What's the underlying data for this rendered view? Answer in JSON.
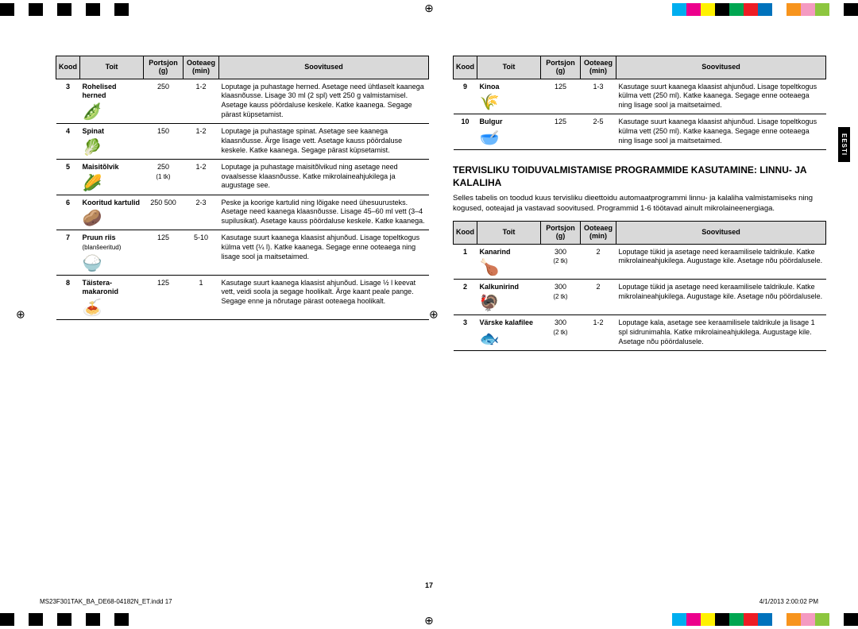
{
  "color_bar": {
    "left_segments": [
      "#000",
      "#fff",
      "#000",
      "#fff",
      "#000",
      "#fff",
      "#000",
      "#fff",
      "#000"
    ],
    "right_segments": [
      "#00aeef",
      "#ec008c",
      "#fff200",
      "#000000",
      "#00a651",
      "#ed1c24",
      "#0072bc",
      "#fff",
      "#f7941d",
      "#f49ac1",
      "#8dc63f",
      "#fff",
      "#000"
    ]
  },
  "registration_glyph": "⊕",
  "side_tab": "EESTI",
  "page_number": "17",
  "footer_left": "MS23F301TAK_BA_DE68-04182N_ET.indd   17",
  "footer_right": "4/1/2013   2:00:02 PM",
  "headers": {
    "kood": "Kood",
    "toit": "Toit",
    "portsjon": "Portsjon (g)",
    "ooteaeg": "Ooteaeg (min)",
    "soovitused": "Soovitused"
  },
  "table1": [
    {
      "code": "3",
      "food": "Rohelised herned",
      "icon": "🫛",
      "port": "250",
      "wait": "1-2",
      "rec": "Loputage ja puhastage herned. Asetage need ühtlaselt kaanega klaasnõusse. Lisage 30 ml (2 spl) vett 250 g valmistamisel. Asetage kauss pöördaluse keskele. Katke kaanega. Segage pärast küpsetamist."
    },
    {
      "code": "4",
      "food": "Spinat",
      "icon": "🥬",
      "port": "150",
      "wait": "1-2",
      "rec": "Loputage ja puhastage spinat. Asetage see kaanega klaasnõusse. Ärge lisage vett. Asetage kauss pöördaluse keskele. Katke kaanega. Segage pärast küpsetamist."
    },
    {
      "code": "5",
      "food": "Maisitõlvik",
      "icon": "🌽",
      "port": "250",
      "port_sub": "(1 tk)",
      "wait": "1-2",
      "rec": "Loputage ja puhastage maisitõlvikud ning asetage need ovaalsesse klaasnõusse. Katke mikrolaineahjukilega ja augustage see."
    },
    {
      "code": "6",
      "food": "Kooritud kartulid",
      "icon": "🥔",
      "port": "250 500",
      "wait": "2-3",
      "rec": "Peske ja koorige kartulid ning lõigake need ühesuurusteks. Asetage need kaanega klaasnõusse. Lisage 45–60 ml vett (3–4 supilusikat). Asetage kauss pöördaluse keskele. Katke kaanega."
    },
    {
      "code": "7",
      "food": "Pruun riis",
      "food_sub": "(blanšeeritud)",
      "icon": "🍚",
      "port": "125",
      "wait": "5-10",
      "rec": "Kasutage suurt kaanega klaasist ahjunõud. Lisage topeltkogus külma vett (¼ l). Katke kaanega. Segage enne ooteaega ning lisage sool ja maitsetaimed."
    },
    {
      "code": "8",
      "food": "Täistera-makaronid",
      "icon": "🍝",
      "port": "125",
      "wait": "1",
      "rec": "Kasutage suurt kaanega klaasist ahjunõud. Lisage ½ l keevat vett, veidi soola ja segage hoolikalt. Ärge kaant peale pange. Segage enne ja nõrutage pärast ooteaega hoolikalt."
    }
  ],
  "table2": [
    {
      "code": "9",
      "food": "Kinoa",
      "icon": "🌾",
      "port": "125",
      "wait": "1-3",
      "rec": "Kasutage suurt kaanega klaasist ahjunõud. Lisage topeltkogus külma vett (250 ml). Katke kaanega. Segage enne ooteaega ning lisage sool ja maitsetaimed."
    },
    {
      "code": "10",
      "food": "Bulgur",
      "icon": "🥣",
      "port": "125",
      "wait": "2-5",
      "rec": "Kasutage suurt kaanega klaasist ahjunõud. Lisage topeltkogus külma vett (250 ml). Katke kaanega. Segage enne ooteaega ning lisage sool ja maitsetaimed."
    }
  ],
  "section_title": "TERVISLIKU TOIDUVALMISTAMISE PROGRAMMIDE KASUTAMINE: LINNU- JA KALALIHA",
  "section_intro": "Selles tabelis on toodud kuus tervisliku dieettoidu automaatprogrammi linnu- ja kalaliha valmistamiseks ning kogused, ooteajad ja vastavad soovitused. Programmid 1-6 töötavad ainult mikrolaineenergiaga.",
  "table3": [
    {
      "code": "1",
      "food": "Kanarind",
      "icon": "🍗",
      "port": "300",
      "port_sub": "(2 tk)",
      "wait": "2",
      "rec": "Loputage tükid ja asetage need keraamilisele taldrikule. Katke mikrolaineahjukilega. Augustage kile. Asetage nõu pöördalusele."
    },
    {
      "code": "2",
      "food": "Kalkunirind",
      "icon": "🦃",
      "port": "300",
      "port_sub": "(2 tk)",
      "wait": "2",
      "rec": "Loputage tükid ja asetage need keraamilisele taldrikule. Katke mikrolaineahjukilega. Augustage kile. Asetage nõu pöördalusele."
    },
    {
      "code": "3",
      "food": "Värske kalafilee",
      "icon": "🐟",
      "port": "300",
      "port_sub": "(2 tk)",
      "wait": "1-2",
      "rec": "Loputage kala, asetage see keraamilisele taldrikule ja lisage 1 spl sidrunimahla. Katke mikrolaineahjukilega. Augustage kile. Asetage nõu pöördalusele."
    }
  ]
}
